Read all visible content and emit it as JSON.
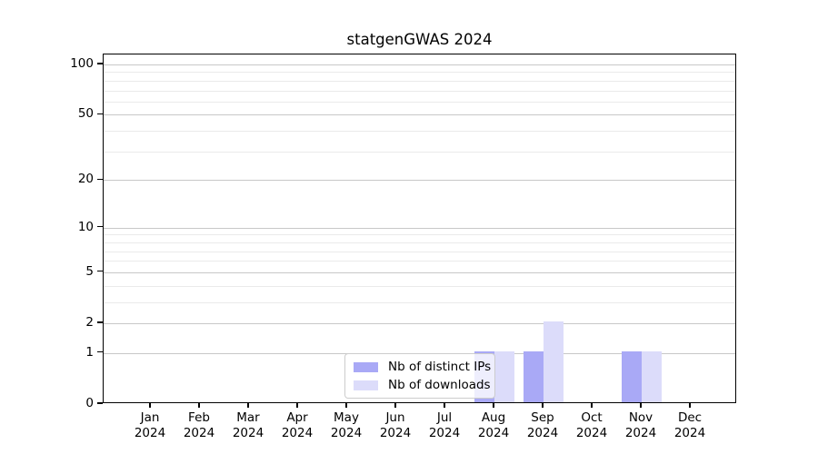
{
  "chart_data": {
    "type": "bar",
    "title": "statgenGWAS 2024",
    "y_scale": "log1p",
    "grid": "on",
    "legend_position": "inside-bottom-center-left",
    "categories": [
      {
        "month": "Jan",
        "year": "2024"
      },
      {
        "month": "Feb",
        "year": "2024"
      },
      {
        "month": "Mar",
        "year": "2024"
      },
      {
        "month": "Apr",
        "year": "2024"
      },
      {
        "month": "May",
        "year": "2024"
      },
      {
        "month": "Jun",
        "year": "2024"
      },
      {
        "month": "Jul",
        "year": "2024"
      },
      {
        "month": "Aug",
        "year": "2024"
      },
      {
        "month": "Sep",
        "year": "2024"
      },
      {
        "month": "Oct",
        "year": "2024"
      },
      {
        "month": "Nov",
        "year": "2024"
      },
      {
        "month": "Dec",
        "year": "2024"
      }
    ],
    "series": [
      {
        "name": "Nb of distinct IPs",
        "color": "#a9a9f6",
        "values": [
          0,
          0,
          0,
          0,
          0,
          0,
          0,
          1,
          1,
          0,
          1,
          0
        ]
      },
      {
        "name": "Nb of downloads",
        "color": "#dcdcfa",
        "values": [
          0,
          0,
          0,
          0,
          0,
          0,
          0,
          1,
          2,
          0,
          1,
          0
        ]
      }
    ],
    "y_major_ticks": [
      0,
      1,
      2,
      5,
      10,
      20,
      50,
      100
    ],
    "y_minor_gridlines": [
      3,
      4,
      6,
      7,
      8,
      9,
      30,
      40,
      60,
      70,
      80,
      90
    ],
    "ylim": [
      0,
      115
    ],
    "colors": {
      "major_grid": "#c8c8c8",
      "minor_grid": "#eaeaea",
      "spine": "#000000",
      "background": "#ffffff"
    }
  }
}
